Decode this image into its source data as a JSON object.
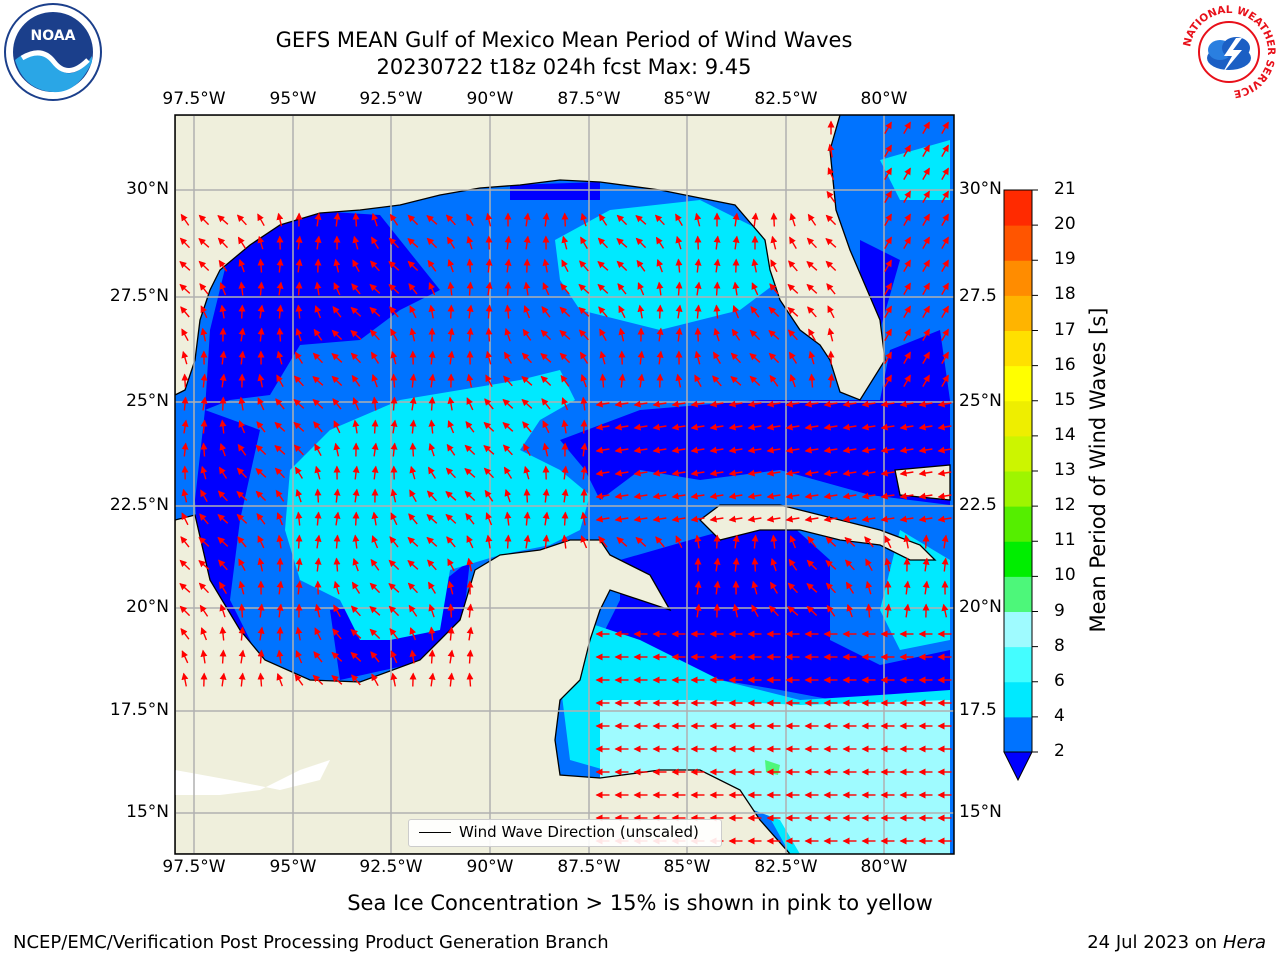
{
  "title": {
    "line1": "GEFS MEAN Gulf of Mexico Mean Period of Wind Waves",
    "line2": "20230722 t18z 024h fcst   Max: 9.45"
  },
  "map": {
    "lon_range": [
      -98.5,
      -78.7
    ],
    "lat_range": [
      14.0,
      31.8
    ],
    "lon_ticks": [
      "97.5°W",
      "95°W",
      "92.5°W",
      "90°W",
      "87.5°W",
      "85°W",
      "82.5°W",
      "80°W"
    ],
    "lat_ticks_left": [
      "15°N",
      "17.5°N",
      "20°N",
      "22.5°N",
      "25°N",
      "27.5°N",
      "30°N"
    ],
    "lat_ticks_right": [
      "15°N",
      "17.5",
      "20°N",
      "22.5",
      "25°N",
      "27.5",
      "30°N"
    ],
    "colors": {
      "land": "#efefdc",
      "gridline": "#b0b0b0",
      "arrow": "#ff0000"
    },
    "legend_label": "Wind Wave Direction (unscaled)"
  },
  "colorbar": {
    "label": "Mean Period of Wind Waves [s]",
    "ticks": [
      "2",
      "4",
      "6",
      "8",
      "9",
      "10",
      "11",
      "12",
      "13",
      "14",
      "15",
      "16",
      "17",
      "18",
      "19",
      "20",
      "21"
    ],
    "colors": [
      "#0073ff",
      "#00e9ff",
      "#44fdff",
      "#9ffbff",
      "#4df77a",
      "#00ee00",
      "#55ee00",
      "#9ef500",
      "#ccf500",
      "#eeee00",
      "#ffff00",
      "#ffe000",
      "#ffb400",
      "#ff8c00",
      "#ff5500",
      "#ff2a00"
    ],
    "under_color": "#0000ff"
  },
  "note": "Sea Ice Concentration > 15% is shown in pink to yellow",
  "footer": {
    "left": "NCEP/EMC/Verification Post Processing Product Generation Branch",
    "right_date": "24 Jul 2023 on ",
    "right_host": "Hera"
  },
  "logos": {
    "left_text": "NOAA",
    "right_text": "NATIONAL WEATHER SERVICE"
  }
}
